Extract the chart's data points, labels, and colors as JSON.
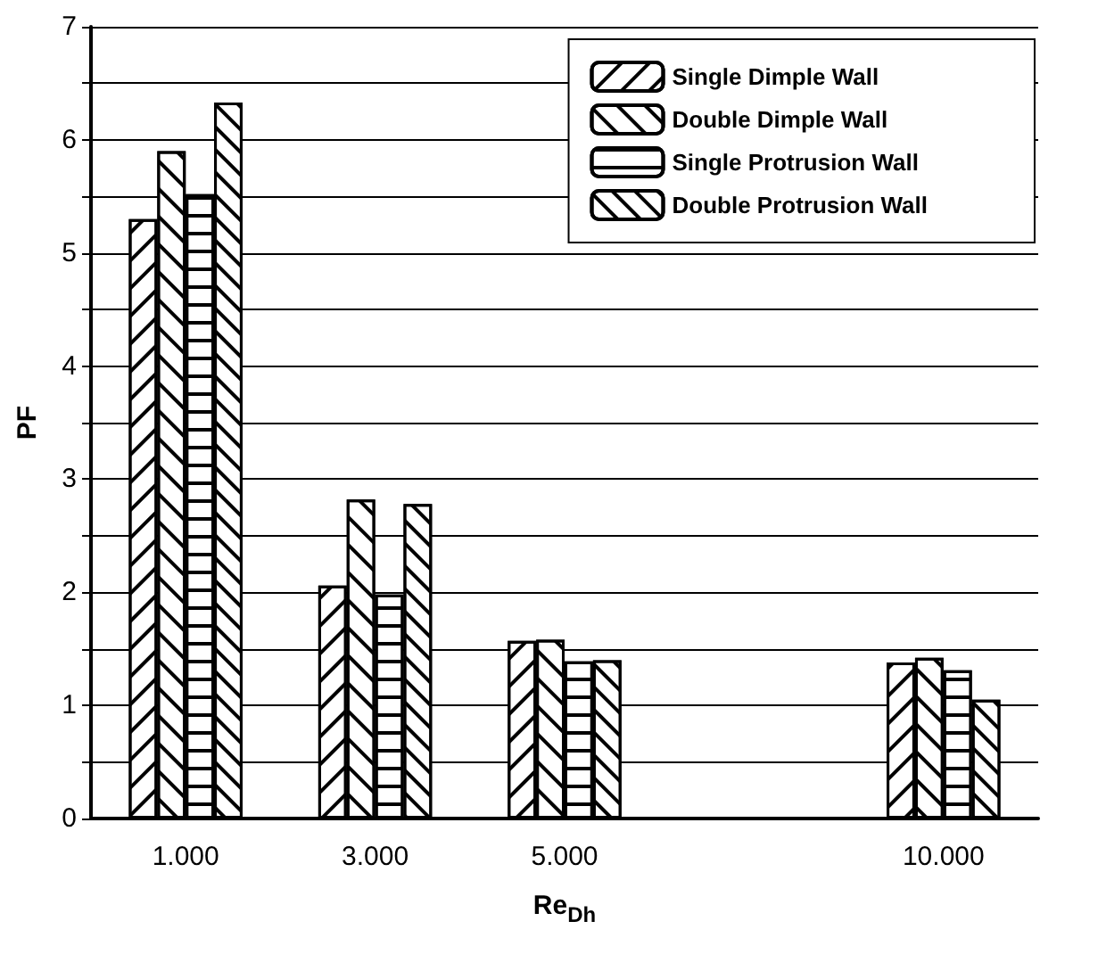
{
  "chart_data": {
    "type": "bar",
    "xlabel": "Re$_{Dh}$",
    "ylabel": "PF",
    "categories": [
      "1.000",
      "3.000",
      "5.000",
      null,
      "10.000"
    ],
    "series": [
      {
        "name": "Single Dimple Wall",
        "color": "#ffffff",
        "values": [
          5.3,
          2.06,
          1.57,
          null,
          1.38
        ]
      },
      {
        "name": "Double Dimple Wall",
        "color": "#ffffff",
        "values": [
          5.9,
          2.82,
          1.58,
          null,
          1.42
        ]
      },
      {
        "name": "Single Protrusion Wall",
        "color": "#ffffff",
        "values": [
          5.52,
          1.98,
          1.39,
          null,
          1.31
        ]
      },
      {
        "name": "Double Protrusion Wall",
        "color": "#ffffff",
        "values": [
          6.33,
          2.78,
          1.4,
          null,
          1.05
        ]
      }
    ],
    "ylim": [
      0,
      7
    ],
    "yticks": [
      0,
      {
        "value": 0.5,
        "label": null
      },
      1,
      {
        "value": 1.5,
        "label": null
      },
      2,
      {
        "value": 2.5,
        "label": null
      },
      3,
      {
        "value": 3.5,
        "label": null
      },
      4,
      {
        "value": 4.5,
        "label": null
      },
      5,
      {
        "value": 5.5,
        "label": null
      },
      6,
      {
        "value": 6.5,
        "label": null
      },
      7
    ],
    "grid": "y",
    "legend": "top right"
  }
}
